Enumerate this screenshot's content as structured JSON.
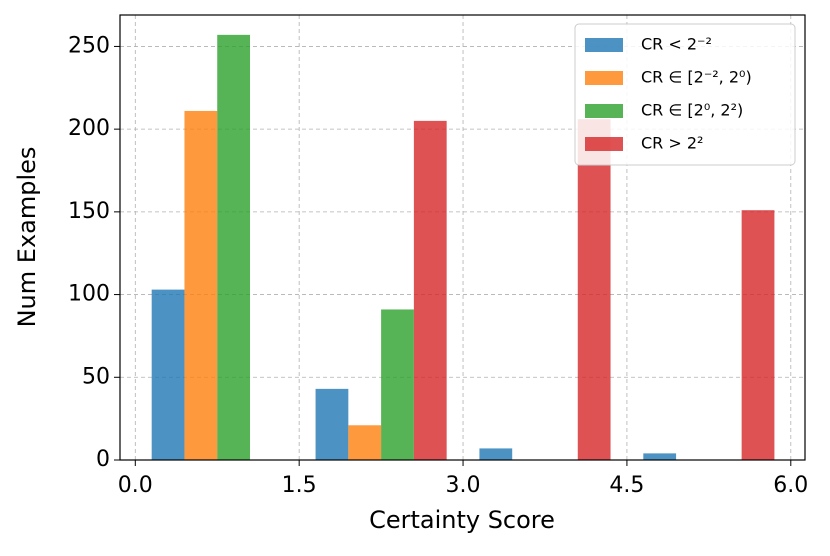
{
  "chart_data": {
    "type": "histogram",
    "xlabel": "Certainty Score",
    "ylabel": "Num Examples",
    "bins": [
      0,
      1.5,
      3,
      4.5,
      6
    ],
    "series": [
      {
        "name": "CR < 2⁻²",
        "color": "#1f77b4",
        "values": [
          103,
          43,
          7,
          4
        ]
      },
      {
        "name": "CR ∈ [2⁻², 2⁰)",
        "color": "#ff7f0e",
        "values": [
          211,
          21,
          0,
          0
        ]
      },
      {
        "name": "CR ∈ [2⁰, 2²)",
        "color": "#2ca02c",
        "values": [
          257,
          91,
          0,
          0
        ]
      },
      {
        "name": "CR > 2²",
        "color": "#d62728",
        "values": [
          0,
          205,
          206,
          151
        ]
      }
    ],
    "xlim": [
      -0.14,
      6.13
    ],
    "ylim": [
      0,
      269
    ],
    "xticks": [
      {
        "value": 0,
        "label": "0.0"
      },
      1.5,
      {
        "value": 3,
        "label": "3.0"
      },
      4.5,
      {
        "value": 6,
        "label": "6.0"
      }
    ],
    "yticks": [
      0,
      50,
      100,
      150,
      200,
      250
    ],
    "grid": true,
    "legend": "upper right"
  }
}
